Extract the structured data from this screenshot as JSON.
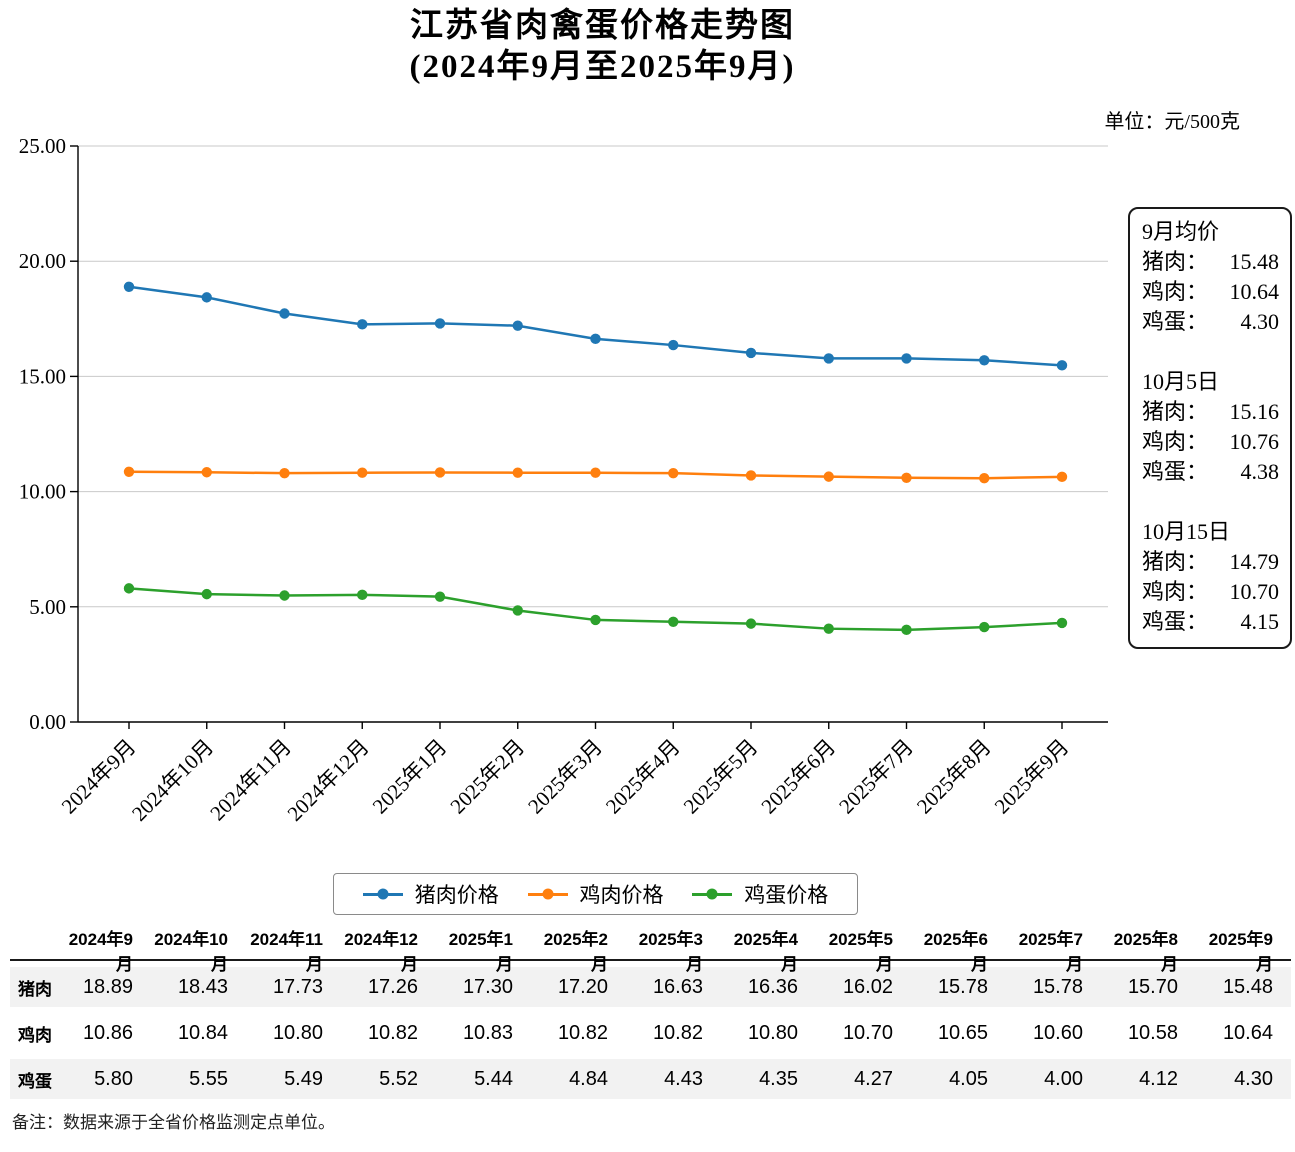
{
  "title": {
    "line1": "江苏省肉禽蛋价格走势图",
    "line2": "(2024年9月至2025年9月)"
  },
  "unit_label": "单位：元/500克",
  "chart_data": {
    "type": "line",
    "title": "江苏省肉禽蛋价格走势图 (2024年9月至2025年9月)",
    "xlabel": "",
    "ylabel": "",
    "ylim": [
      0,
      25
    ],
    "yticks": [
      "0.00",
      "5.00",
      "10.00",
      "15.00",
      "20.00",
      "25.00"
    ],
    "grid": true,
    "legend_position": "bottom",
    "categories": [
      "2024年9月",
      "2024年10月",
      "2024年11月",
      "2024年12月",
      "2025年1月",
      "2025年2月",
      "2025年3月",
      "2025年4月",
      "2025年5月",
      "2025年6月",
      "2025年7月",
      "2025年8月",
      "2025年9月"
    ],
    "series": [
      {
        "name": "猪肉价格",
        "color": "#1f77b4",
        "values": [
          18.89,
          18.43,
          17.73,
          17.26,
          17.3,
          17.2,
          16.63,
          16.36,
          16.02,
          15.78,
          15.78,
          15.7,
          15.48
        ]
      },
      {
        "name": "鸡肉价格",
        "color": "#ff7f0e",
        "values": [
          10.86,
          10.84,
          10.8,
          10.82,
          10.83,
          10.82,
          10.82,
          10.8,
          10.7,
          10.65,
          10.6,
          10.58,
          10.64
        ]
      },
      {
        "name": "鸡蛋价格",
        "color": "#2ca02c",
        "values": [
          5.8,
          5.55,
          5.49,
          5.52,
          5.44,
          4.84,
          4.43,
          4.35,
          4.27,
          4.05,
          4.0,
          4.12,
          4.3
        ]
      }
    ]
  },
  "annotation_box": {
    "sections": [
      {
        "title": "9月均价",
        "rows": [
          {
            "label": "猪肉：",
            "value": "15.48"
          },
          {
            "label": "鸡肉：",
            "value": "10.64"
          },
          {
            "label": "鸡蛋：",
            "value": "4.30"
          }
        ]
      },
      {
        "title": "10月5日",
        "rows": [
          {
            "label": "猪肉：",
            "value": "15.16"
          },
          {
            "label": "鸡肉：",
            "value": "10.76"
          },
          {
            "label": "鸡蛋：",
            "value": "4.38"
          }
        ]
      },
      {
        "title": "10月15日",
        "rows": [
          {
            "label": "猪肉：",
            "value": "14.79"
          },
          {
            "label": "鸡肉：",
            "value": "10.70"
          },
          {
            "label": "鸡蛋：",
            "value": "4.15"
          }
        ]
      }
    ]
  },
  "legend": {
    "items": [
      {
        "label": "猪肉价格",
        "color": "#1f77b4"
      },
      {
        "label": "鸡肉价格",
        "color": "#ff7f0e"
      },
      {
        "label": "鸡蛋价格",
        "color": "#2ca02c"
      }
    ]
  },
  "table": {
    "columns": [
      "",
      "2024年9月",
      "2024年10月",
      "2024年11月",
      "2024年12月",
      "2025年1月",
      "2025年2月",
      "2025年3月",
      "2025年4月",
      "2025年5月",
      "2025年6月",
      "2025年7月",
      "2025年8月",
      "2025年9月"
    ],
    "rows": [
      {
        "label": "猪肉",
        "values": [
          "18.89",
          "18.43",
          "17.73",
          "17.26",
          "17.30",
          "17.20",
          "16.63",
          "16.36",
          "16.02",
          "15.78",
          "15.78",
          "15.70",
          "15.48"
        ]
      },
      {
        "label": "鸡肉",
        "values": [
          "10.86",
          "10.84",
          "10.80",
          "10.82",
          "10.83",
          "10.82",
          "10.82",
          "10.80",
          "10.70",
          "10.65",
          "10.60",
          "10.58",
          "10.64"
        ]
      },
      {
        "label": "鸡蛋",
        "values": [
          "5.80",
          "5.55",
          "5.49",
          "5.52",
          "5.44",
          "4.84",
          "4.43",
          "4.35",
          "4.27",
          "4.05",
          "4.00",
          "4.12",
          "4.30"
        ]
      }
    ]
  },
  "footnote": "备注：数据来源于全省价格监测定点单位。"
}
